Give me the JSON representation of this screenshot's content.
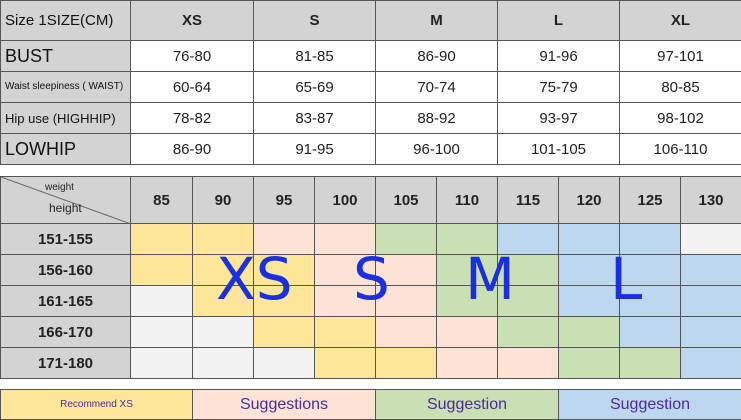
{
  "size_table": {
    "header": [
      "Size 1SIZE(CM)",
      "XS",
      "S",
      "M",
      "L",
      "XL"
    ],
    "rows": [
      {
        "label": "BUST",
        "values": [
          "76-80",
          "81-85",
          "86-90",
          "91-96",
          "97-101"
        ]
      },
      {
        "label": "Waist sleepiness ( WAIST)",
        "values": [
          "60-64",
          "65-69",
          "70-74",
          "75-79",
          "80-85"
        ]
      },
      {
        "label": "Hip use (HIGHHIP)",
        "values": [
          "78-82",
          "83-87",
          "88-92",
          "93-97",
          "98-102"
        ]
      },
      {
        "label": "LOWHIP",
        "values": [
          "86-90",
          "91-95",
          "96-100",
          "101-105",
          "106-110"
        ]
      }
    ]
  },
  "fit_grid": {
    "corner_top": "weight",
    "corner_bottom": "height",
    "weights": [
      "85",
      "90",
      "95",
      "100",
      "105",
      "110",
      "115",
      "120",
      "125",
      "130"
    ],
    "colors": {
      "Y": "#fde59a",
      "P": "#fde3d6",
      "G": "#c9e0b4",
      "B": "#bdd7ee",
      "W": "#f2f2f2"
    },
    "rows": [
      {
        "height": "151-155",
        "cells": [
          "Y",
          "Y",
          "P",
          "P",
          "G",
          "G",
          "B",
          "B",
          "B",
          "W"
        ]
      },
      {
        "height": "156-160",
        "cells": [
          "Y",
          "Y",
          "Y",
          "P",
          "P",
          "G",
          "G",
          "B",
          "B",
          "B"
        ]
      },
      {
        "height": "161-165",
        "cells": [
          "W",
          "Y",
          "Y",
          "P",
          "P",
          "G",
          "G",
          "B",
          "B",
          "B"
        ]
      },
      {
        "height": "166-170",
        "cells": [
          "W",
          "W",
          "Y",
          "Y",
          "P",
          "P",
          "G",
          "G",
          "B",
          "B"
        ]
      },
      {
        "height": "171-180",
        "cells": [
          "W",
          "W",
          "W",
          "Y",
          "Y",
          "P",
          "P",
          "G",
          "G",
          "B"
        ]
      }
    ],
    "size_labels": [
      "XS",
      "S",
      "M",
      "L"
    ]
  },
  "legend": [
    {
      "label": "Recommend XS",
      "color": "Y"
    },
    {
      "label": "Suggestions",
      "color": "P"
    },
    {
      "label": "Suggestion",
      "color": "G"
    },
    {
      "label": "Suggestion",
      "color": "B"
    }
  ]
}
